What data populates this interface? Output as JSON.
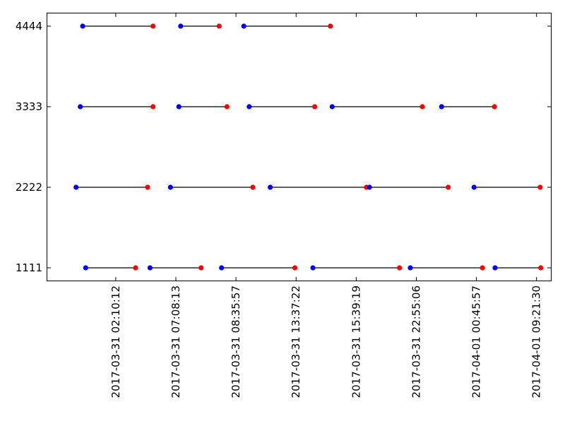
{
  "chart_data": {
    "type": "scatter",
    "title": "",
    "xlabel": "",
    "ylabel": "",
    "grid": false,
    "legend": "none",
    "categories": [
      "1111",
      "2222",
      "3333",
      "4444"
    ],
    "x_tick_labels": [
      "2017-03-31 02:10:12",
      "2017-03-31 07:08:13",
      "2017-03-31 08:35:57",
      "2017-03-31 13:37:22",
      "2017-03-31 15:39:19",
      "2017-03-31 22:55:06",
      "2017-04-01 00:45:57",
      "2017-04-01 09:21:30"
    ],
    "x_tick_positions": [
      0.5,
      1.5,
      2.5,
      3.5,
      4.5,
      5.5,
      6.5,
      7.5
    ],
    "xlim": [
      -0.65,
      7.75
    ],
    "colors": {
      "start": "#0000ff",
      "end": "#ff0000",
      "line": "#000000"
    },
    "segments": [
      {
        "id": "1111",
        "start": 0.0,
        "end": 0.83
      },
      {
        "id": "1111",
        "start": 1.07,
        "end": 1.92
      },
      {
        "id": "1111",
        "start": 2.26,
        "end": 3.48
      },
      {
        "id": "1111",
        "start": 3.78,
        "end": 5.22
      },
      {
        "id": "1111",
        "start": 5.4,
        "end": 6.6
      },
      {
        "id": "1111",
        "start": 6.81,
        "end": 7.57
      },
      {
        "id": "2222",
        "start": -0.16,
        "end": 1.03
      },
      {
        "id": "2222",
        "start": 1.41,
        "end": 2.78
      },
      {
        "id": "2222",
        "start": 3.07,
        "end": 4.67
      },
      {
        "id": "2222",
        "start": 4.72,
        "end": 6.03
      },
      {
        "id": "2222",
        "start": 6.46,
        "end": 7.56
      },
      {
        "id": "3333",
        "start": -0.09,
        "end": 1.12
      },
      {
        "id": "3333",
        "start": 1.55,
        "end": 2.35
      },
      {
        "id": "3333",
        "start": 2.72,
        "end": 3.81
      },
      {
        "id": "3333",
        "start": 4.1,
        "end": 5.6
      },
      {
        "id": "3333",
        "start": 5.92,
        "end": 6.8
      },
      {
        "id": "4444",
        "start": -0.05,
        "end": 1.12
      },
      {
        "id": "4444",
        "start": 1.58,
        "end": 2.22
      },
      {
        "id": "4444",
        "start": 2.63,
        "end": 4.07
      }
    ]
  }
}
